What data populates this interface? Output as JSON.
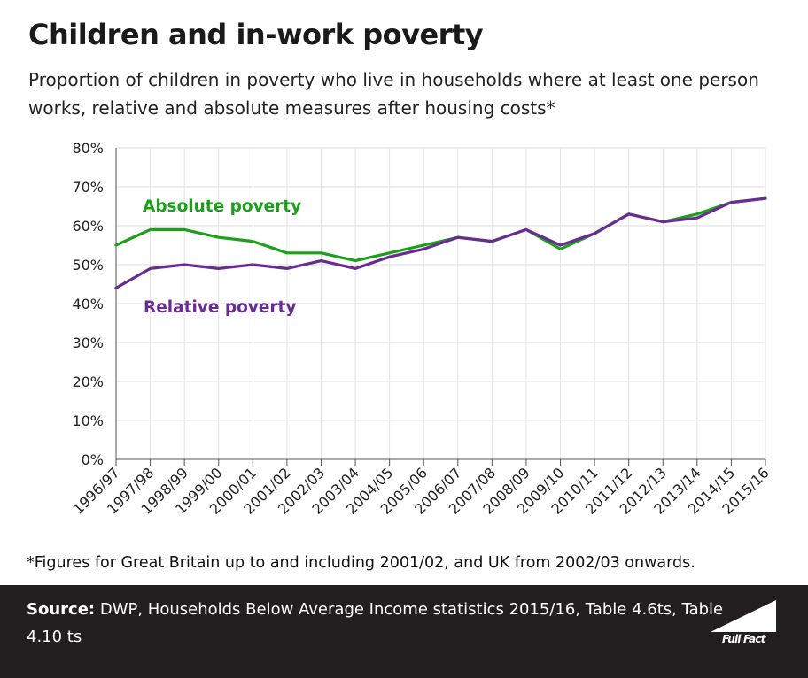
{
  "chart_data": {
    "type": "line",
    "title": "Children and in-work poverty",
    "subtitle": "Proportion of children in poverty who live in households where at least one person works, relative and absolute measures after housing costs*",
    "categories": [
      "1996/97",
      "1997/98",
      "1998/99",
      "1999/00",
      "2000/01",
      "2001/02",
      "2002/03",
      "2003/04",
      "2004/05",
      "2005/06",
      "2006/07",
      "2007/08",
      "2008/09",
      "2009/10",
      "2010/11",
      "2011/12",
      "2012/13",
      "2013/14",
      "2014/15",
      "2015/16"
    ],
    "series": [
      {
        "name": "Absolute poverty",
        "color": "#1aa01a",
        "values": [
          55,
          59,
          59,
          57,
          56,
          53,
          53,
          51,
          53,
          55,
          57,
          56,
          59,
          54,
          58,
          63,
          61,
          63,
          66,
          67
        ]
      },
      {
        "name": "Relative poverty",
        "color": "#6b2c91",
        "values": [
          44,
          49,
          50,
          49,
          50,
          49,
          51,
          49,
          52,
          54,
          57,
          56,
          59,
          55,
          58,
          63,
          61,
          62,
          66,
          67
        ]
      }
    ],
    "yticks": [
      "0%",
      "10%",
      "20%",
      "30%",
      "40%",
      "50%",
      "60%",
      "70%",
      "80%"
    ],
    "ylim": [
      0,
      80
    ],
    "grid": true,
    "legend": "inline labels"
  },
  "footnote": "*Figures for Great Britain up to and including 2001/02, and UK from 2002/03 onwards.",
  "source": {
    "label": "Source:",
    "text": " DWP, Households Below Average Income statistics 2015/16, Table 4.6ts, Table 4.10 ts"
  },
  "logo": {
    "text": "Full Fact",
    "icon": "full-fact-logo-icon"
  }
}
